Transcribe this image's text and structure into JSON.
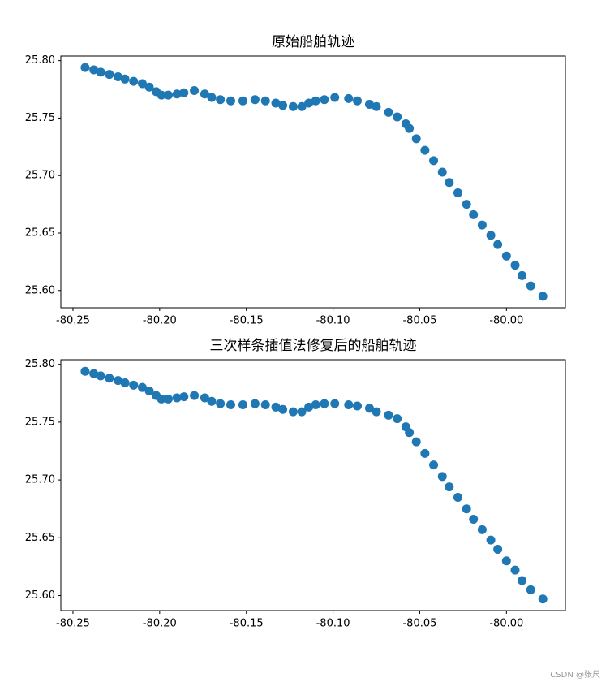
{
  "chart_data": [
    {
      "type": "scatter",
      "title": "原始船舶轨迹",
      "color": "#1f77b4",
      "x": [
        -80.243,
        -80.238,
        -80.234,
        -80.229,
        -80.224,
        -80.22,
        -80.215,
        -80.21,
        -80.206,
        -80.202,
        -80.199,
        -80.195,
        -80.19,
        -80.186,
        -80.18,
        -80.174,
        -80.17,
        -80.165,
        -80.159,
        -80.152,
        -80.145,
        -80.139,
        -80.133,
        -80.129,
        -80.123,
        -80.118,
        -80.114,
        -80.11,
        -80.105,
        -80.099,
        -80.091,
        -80.086,
        -80.079,
        -80.075,
        -80.068,
        -80.063,
        -80.058,
        -80.056,
        -80.052,
        -80.047,
        -80.042,
        -80.037,
        -80.033,
        -80.028,
        -80.023,
        -80.019,
        -80.014,
        -80.009,
        -80.005,
        -80.0,
        -79.995,
        -79.991,
        -79.986,
        -79.979
      ],
      "y": [
        25.794,
        25.792,
        25.79,
        25.788,
        25.786,
        25.784,
        25.782,
        25.78,
        25.777,
        25.773,
        25.77,
        25.77,
        25.771,
        25.772,
        25.774,
        25.771,
        25.768,
        25.766,
        25.765,
        25.765,
        25.766,
        25.765,
        25.763,
        25.761,
        25.76,
        25.76,
        25.763,
        25.765,
        25.766,
        25.768,
        25.767,
        25.765,
        25.762,
        25.76,
        25.755,
        25.751,
        25.745,
        25.741,
        25.732,
        25.722,
        25.713,
        25.703,
        25.694,
        25.685,
        25.675,
        25.666,
        25.657,
        25.648,
        25.64,
        25.63,
        25.622,
        25.613,
        25.604,
        25.595
      ],
      "xlim": [
        -80.257,
        -79.966
      ],
      "ylim": [
        25.585,
        25.804
      ],
      "xticks": [
        -80.25,
        {
          "value": -80.2,
          "label": "-80.20"
        },
        -80.15,
        {
          "value": -80.1,
          "label": "-80.10"
        },
        -80.05,
        {
          "value": -80.0,
          "label": "-80.00"
        }
      ],
      "yticks": [
        {
          "value": 25.6,
          "label": "25.60"
        },
        25.65,
        {
          "value": 25.7,
          "label": "25.70"
        },
        25.75,
        {
          "value": 25.8,
          "label": "25.80"
        }
      ]
    },
    {
      "type": "scatter",
      "title": "三次样条插值法修复后的船舶轨迹",
      "color": "#1f77b4",
      "x": [
        -80.243,
        -80.238,
        -80.234,
        -80.229,
        -80.224,
        -80.22,
        -80.215,
        -80.21,
        -80.206,
        -80.202,
        -80.199,
        -80.195,
        -80.19,
        -80.186,
        -80.18,
        -80.174,
        -80.17,
        -80.165,
        -80.159,
        -80.152,
        -80.145,
        -80.139,
        -80.133,
        -80.129,
        -80.123,
        -80.118,
        -80.114,
        -80.11,
        -80.105,
        -80.099,
        -80.091,
        -80.086,
        -80.079,
        -80.075,
        -80.068,
        -80.063,
        -80.058,
        -80.056,
        -80.052,
        -80.047,
        -80.042,
        -80.037,
        -80.033,
        -80.028,
        -80.023,
        -80.019,
        -80.014,
        -80.009,
        -80.005,
        -80.0,
        -79.995,
        -79.991,
        -79.986,
        -79.979
      ],
      "y": [
        25.794,
        25.792,
        25.79,
        25.788,
        25.786,
        25.784,
        25.782,
        25.78,
        25.777,
        25.773,
        25.77,
        25.77,
        25.771,
        25.772,
        25.773,
        25.771,
        25.768,
        25.766,
        25.765,
        25.765,
        25.766,
        25.765,
        25.763,
        25.761,
        25.759,
        25.759,
        25.763,
        25.765,
        25.766,
        25.766,
        25.765,
        25.764,
        25.762,
        25.759,
        25.756,
        25.753,
        25.746,
        25.741,
        25.733,
        25.723,
        25.713,
        25.703,
        25.694,
        25.685,
        25.675,
        25.666,
        25.657,
        25.648,
        25.64,
        25.63,
        25.622,
        25.613,
        25.605,
        25.597
      ],
      "xlim": [
        -80.257,
        -79.966
      ],
      "ylim": [
        25.587,
        25.804
      ],
      "xticks": [
        -80.25,
        {
          "value": -80.2,
          "label": "-80.20"
        },
        -80.15,
        {
          "value": -80.1,
          "label": "-80.10"
        },
        -80.05,
        {
          "value": -80.0,
          "label": "-80.00"
        }
      ],
      "yticks": [
        {
          "value": 25.6,
          "label": "25.60"
        },
        25.65,
        {
          "value": 25.7,
          "label": "25.70"
        },
        25.75,
        {
          "value": 25.8,
          "label": "25.80"
        }
      ]
    }
  ],
  "watermark": "CSDN @张尺"
}
